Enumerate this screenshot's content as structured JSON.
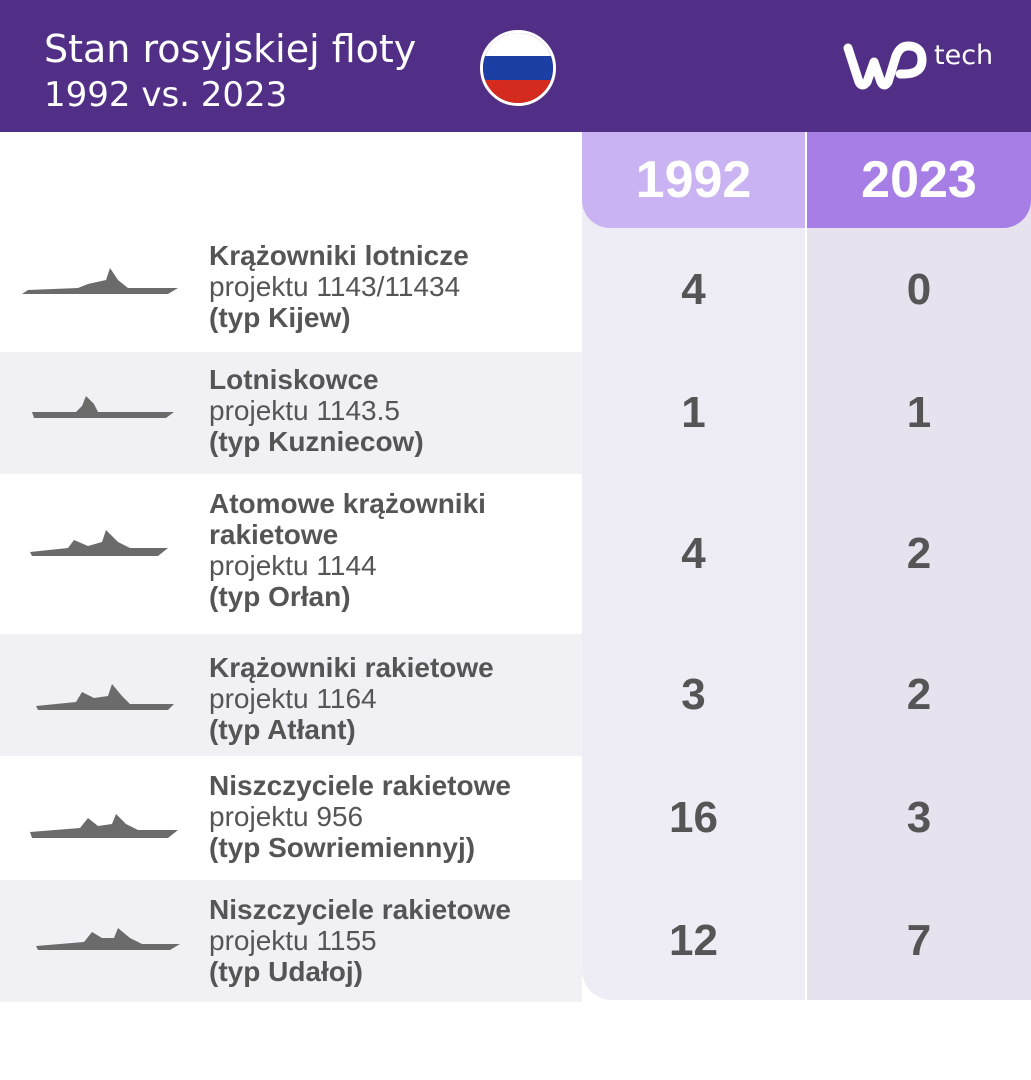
{
  "header": {
    "title_line1": "Stan rosyjskiej floty",
    "title_line2": "1992 vs. 2023",
    "logo_text": "tech",
    "flag_colors": [
      "#ffffff",
      "#1c3fa6",
      "#d52b1e"
    ],
    "background": "#522f86"
  },
  "chart_data": {
    "type": "table",
    "title": "Stan rosyjskiej floty 1992 vs. 2023",
    "columns": [
      "1992",
      "2023"
    ],
    "column_colors": [
      "#c9b3f2",
      "#a77ee6"
    ],
    "rows": [
      {
        "name": "Krążowniki lotnicze",
        "project": "projektu 1143/11434",
        "type": "(typ Kijew)",
        "icon": "aircraft-cruiser-silhouette-icon",
        "values": [
          "4",
          "0"
        ]
      },
      {
        "name": "Lotniskowce",
        "project": "projektu 1143.5",
        "type": "(typ Kuzniecow)",
        "icon": "aircraft-carrier-silhouette-icon",
        "values": [
          "1",
          "1"
        ]
      },
      {
        "name": "Atomowe krążowniki rakietowe",
        "project": "projektu 1144",
        "type": "(typ Orłan)",
        "icon": "nuclear-cruiser-silhouette-icon",
        "values": [
          "4",
          "2"
        ]
      },
      {
        "name": "Krążowniki rakietowe",
        "project": "projektu 1164",
        "type": "(typ Atłant)",
        "icon": "missile-cruiser-silhouette-icon",
        "values": [
          "3",
          "2"
        ]
      },
      {
        "name": "Niszczyciele rakietowe",
        "project": "projektu 956",
        "type": "(typ Sowriemiennyj)",
        "icon": "destroyer-silhouette-icon",
        "values": [
          "16",
          "3"
        ]
      },
      {
        "name": "Niszczyciele rakietowe",
        "project": "projektu 1155",
        "type": "(typ Udałoj)",
        "icon": "destroyer-silhouette-icon",
        "values": [
          "12",
          "7"
        ]
      }
    ]
  }
}
